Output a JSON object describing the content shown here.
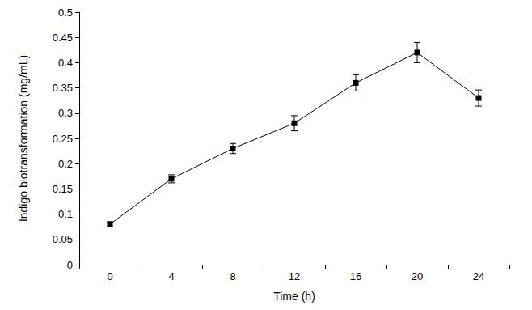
{
  "chart_data": {
    "type": "line",
    "x_label": "Time (h)",
    "y_label": "Indigo biotransformation (mg/mL)",
    "categories": [
      "0",
      "4",
      "8",
      "12",
      "16",
      "20",
      "24"
    ],
    "series": [
      {
        "name": "Indigo biotransformation",
        "color": "#000000",
        "marker": "square",
        "line_style": "solid",
        "values": [
          0.08,
          0.17,
          0.23,
          0.28,
          0.36,
          0.42,
          0.33
        ],
        "errors": [
          0.005,
          0.008,
          0.01,
          0.015,
          0.016,
          0.02,
          0.016
        ]
      }
    ],
    "ylim": [
      0,
      0.5
    ],
    "yticks": [
      0,
      0.05,
      0.1,
      0.15,
      0.2,
      0.25,
      0.3,
      0.35,
      0.4,
      0.45,
      0.5
    ],
    "grid": false,
    "legend": "none"
  }
}
